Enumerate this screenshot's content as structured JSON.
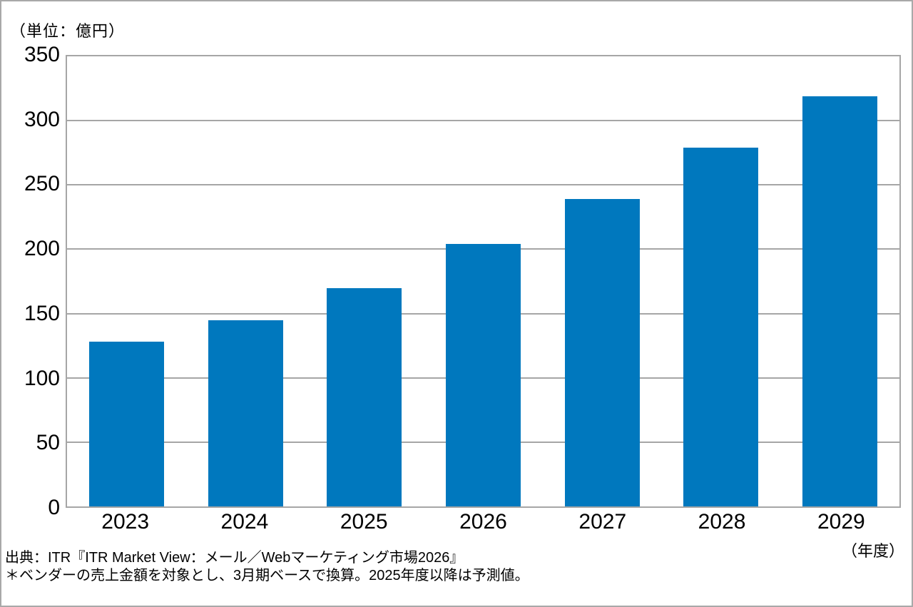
{
  "chart_data": {
    "type": "bar",
    "categories": [
      "2023",
      "2024",
      "2025",
      "2026",
      "2027",
      "2028",
      "2029"
    ],
    "values": [
      128,
      145,
      170,
      204,
      239,
      279,
      319
    ],
    "title": "",
    "ylabel": "（単位：億円）",
    "xlabel": "（年度）",
    "ylim": [
      0,
      350
    ],
    "yticks": [
      0,
      50,
      100,
      150,
      200,
      250,
      300,
      350
    ],
    "grid": true,
    "legend": false,
    "bar_color": "#0078be",
    "gridline_color": "#a6a6a6"
  },
  "footer": {
    "source": "出典：ITR『ITR Market View：メール／Webマーケティング市場2026』",
    "note": "＊ベンダーの売上金額を対象とし、3月期ベースで換算。2025年度以降は予測値。"
  }
}
